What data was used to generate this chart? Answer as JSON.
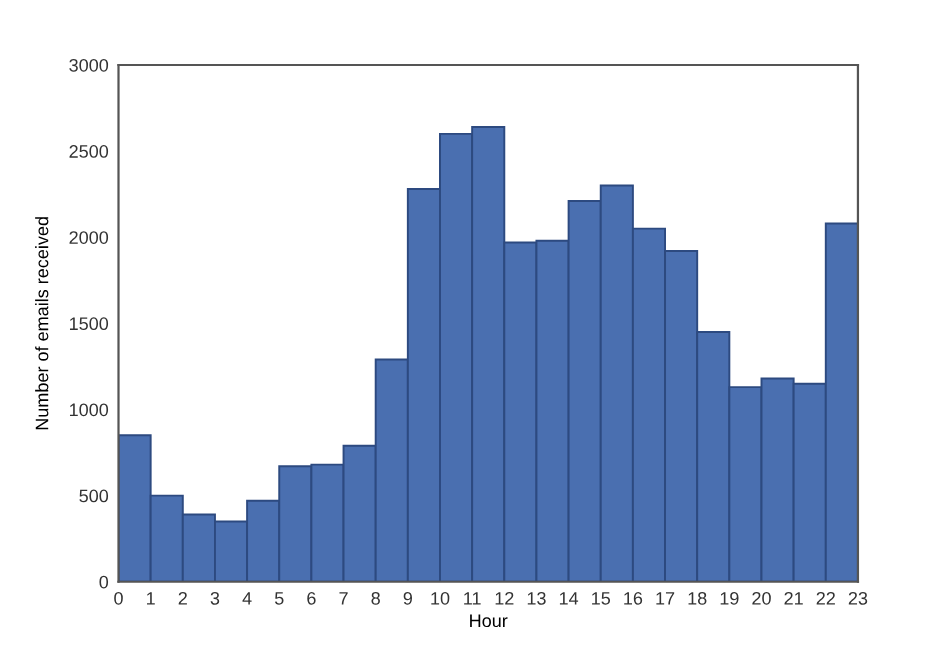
{
  "chart_data": {
    "type": "histogram",
    "xlabel": "Hour",
    "ylabel": "Number of emails received",
    "bins": [
      0,
      1,
      2,
      3,
      4,
      5,
      6,
      7,
      8,
      9,
      10,
      11,
      12,
      13,
      14,
      15,
      16,
      17,
      18,
      19,
      20,
      21,
      22,
      23
    ],
    "values": [
      850,
      500,
      390,
      350,
      470,
      670,
      680,
      790,
      1290,
      2280,
      2600,
      2640,
      1970,
      1980,
      2210,
      2300,
      2050,
      1920,
      1450,
      1130,
      1180,
      1150,
      2080
    ],
    "color": "#4a6fb0",
    "xlim": [
      0,
      23
    ],
    "xticks": [
      0,
      1,
      2,
      3,
      4,
      5,
      6,
      7,
      8,
      9,
      10,
      11,
      12,
      13,
      14,
      15,
      16,
      17,
      18,
      19,
      20,
      21,
      22,
      23
    ],
    "ylim": [
      0,
      3000
    ],
    "yticks": [
      0,
      500,
      1000,
      1500,
      2000,
      2500,
      3000
    ],
    "grid": false
  }
}
